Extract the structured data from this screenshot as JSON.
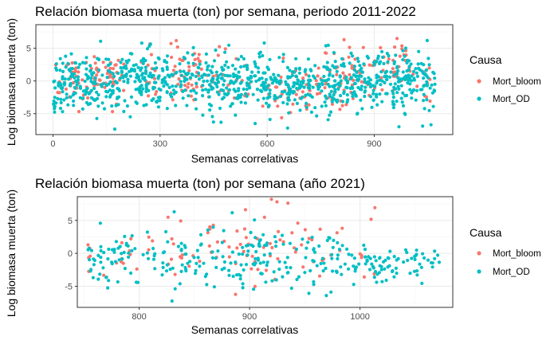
{
  "colors": {
    "Mort_bloom": "#F8766D",
    "Mort_OD": "#00BFC4",
    "panel_border": "#333333",
    "grid_major": "#EBEBEB",
    "grid_minor": "#F5F5F5",
    "tick_text": "#4D4D4D"
  },
  "legend": {
    "title": "Causa",
    "position": "right",
    "items": [
      "Mort_bloom",
      "Mort_OD"
    ]
  },
  "chart_data": [
    {
      "type": "scatter",
      "title": "Relación biomasa muerta (ton) por semana, periodo 2011-2022",
      "xlabel": "Semanas correlativas",
      "ylabel": "Log biomasa muerta (ton)",
      "xlim": [
        -48,
        1120
      ],
      "ylim": [
        -8.2,
        8.6
      ],
      "xticks": [
        0,
        300,
        600,
        900
      ],
      "xtick_labels": [
        "0",
        "300",
        "600",
        "900"
      ],
      "yticks": [
        -5,
        0,
        5
      ],
      "ytick_labels": [
        "-5",
        "0",
        "5"
      ],
      "grid": true,
      "series": [
        {
          "name": "Mort_bloom",
          "points_gen": {
            "seed": 11,
            "segments": [
              {
                "x": [
                  5,
                  110
                ],
                "n": 35,
                "mean": 0,
                "sd": 2.0
              },
              {
                "x": [
                  110,
                  200
                ],
                "n": 45,
                "mean": 0.6,
                "sd": 1.4
              },
              {
                "x": [
                  240,
                  290
                ],
                "n": 15,
                "mean": 1.0,
                "sd": 2.0
              },
              {
                "x": [
                  330,
                  420
                ],
                "n": 45,
                "mean": 0.8,
                "sd": 2.0
              },
              {
                "x": [
                  420,
                  600
                ],
                "n": 25,
                "mean": 0,
                "sd": 2.3
              },
              {
                "x": [
                  600,
                  850
                ],
                "n": 70,
                "mean": -1.3,
                "sd": 1.9
              },
              {
                "x": [
                  760,
                  1000
                ],
                "n": 70,
                "mean": 1.6,
                "sd": 2.1
              },
              {
                "x": [
                  1000,
                  1065
                ],
                "n": 10,
                "mean": 0.5,
                "sd": 2.3
              }
            ]
          }
        },
        {
          "name": "Mort_OD",
          "points_gen": {
            "seed": 23,
            "segments": [
              {
                "x": [
                  0,
                  230
                ],
                "n": 210,
                "mean": -0.6,
                "sd": 2.3
              },
              {
                "x": [
                  230,
                  600
                ],
                "n": 330,
                "mean": -0.2,
                "sd": 2.2
              },
              {
                "x": [
                  600,
                  760
                ],
                "n": 140,
                "mean": -1.0,
                "sd": 1.9
              },
              {
                "x": [
                  760,
                  1070
                ],
                "n": 300,
                "mean": -0.3,
                "sd": 2.2
              }
            ]
          }
        }
      ]
    },
    {
      "type": "scatter",
      "title": "Relación biomasa muerta (ton) por semana (año 2021)",
      "xlabel": "Semanas correlativas",
      "ylabel": "Log biomasa muerta (ton)",
      "xlim": [
        744,
        1084
      ],
      "ylim": [
        -8.2,
        8.6
      ],
      "xticks": [
        800,
        900,
        1000
      ],
      "xtick_labels": [
        "800",
        "900",
        "1000"
      ],
      "yticks": [
        -5,
        0,
        5
      ],
      "ytick_labels": [
        "-5",
        "0",
        "5"
      ],
      "grid": true,
      "series": [
        {
          "name": "Mort_bloom",
          "points_gen": {
            "seed": 31,
            "segments": [
              {
                "x": [
                  752,
                  800
                ],
                "n": 15,
                "mean": -0.8,
                "sd": 2.6
              },
              {
                "x": [
                  800,
                  880
                ],
                "n": 25,
                "mean": 2.0,
                "sd": 2.2
              },
              {
                "x": [
                  880,
                  965
                ],
                "n": 45,
                "mean": 1.2,
                "sd": 2.6
              },
              {
                "x": [
                  965,
                  1015
                ],
                "n": 15,
                "mean": 1.0,
                "sd": 2.4
              }
            ]
          }
        },
        {
          "name": "Mort_OD",
          "points_gen": {
            "seed": 47,
            "segments": [
              {
                "x": [
                  752,
                  880
                ],
                "n": 120,
                "mean": -0.7,
                "sd": 2.2
              },
              {
                "x": [
                  880,
                  1000
                ],
                "n": 130,
                "mean": -1.0,
                "sd": 2.4
              },
              {
                "x": [
                  1000,
                  1072
                ],
                "n": 70,
                "mean": -1.6,
                "sd": 1.4
              }
            ]
          }
        }
      ]
    }
  ]
}
